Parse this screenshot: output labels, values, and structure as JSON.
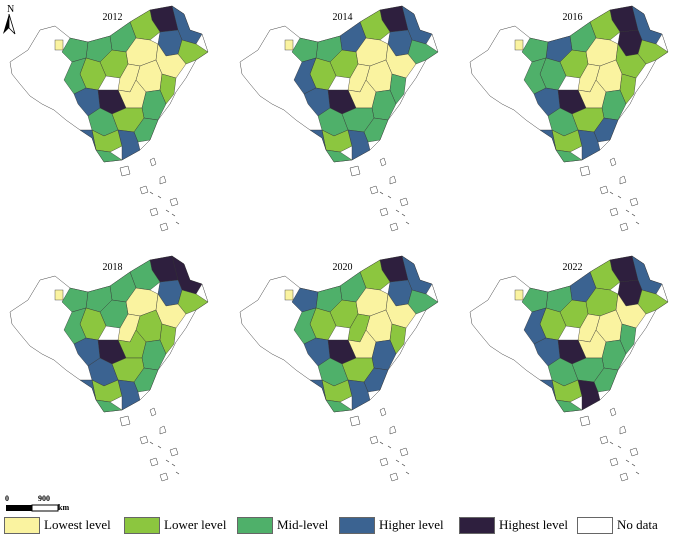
{
  "north_arrow": {
    "label": "N"
  },
  "scale": {
    "start": "0",
    "end": "900",
    "unit": "km"
  },
  "panels": [
    {
      "year": "2012"
    },
    {
      "year": "2014"
    },
    {
      "year": "2016"
    },
    {
      "year": "2018"
    },
    {
      "year": "2020"
    },
    {
      "year": "2022"
    }
  ],
  "legend": [
    {
      "label": "Lowest level",
      "color": "#faf3a0"
    },
    {
      "label": "Lower level",
      "color": "#8cc63f"
    },
    {
      "label": "Mid-level",
      "color": "#4fb06a"
    },
    {
      "label": "Higher level",
      "color": "#3b6391"
    },
    {
      "label": "Highest level",
      "color": "#2e1f3e"
    },
    {
      "label": "No data",
      "color": "#ffffff"
    }
  ]
}
